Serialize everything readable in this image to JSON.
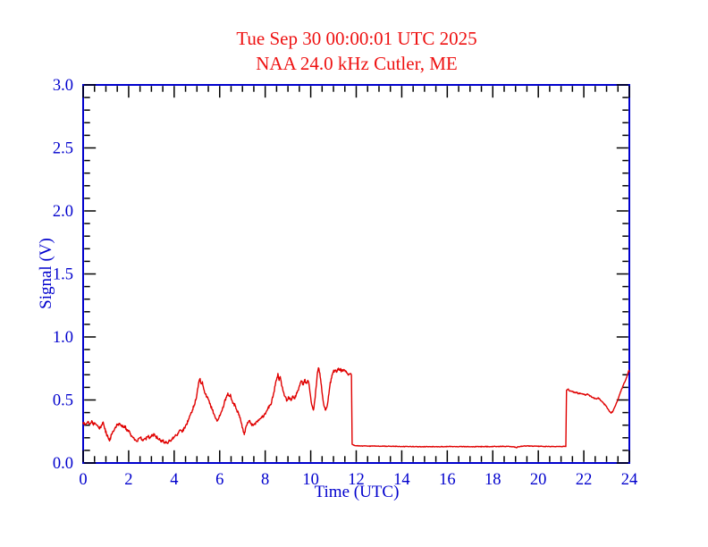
{
  "page": {
    "background": "#ffffff"
  },
  "chart_data": {
    "type": "line",
    "title": "Tue Sep 30 00:00:01 UTC 2025",
    "subtitle": "NAA 24.0 kHz Cutler, ME",
    "xlabel": "Time (UTC)",
    "ylabel": "Signal (V)",
    "xlim": [
      0,
      24
    ],
    "ylim": [
      0.0,
      3.0
    ],
    "x_major_tick_step": 2,
    "x_minor_tick_step": 0.5,
    "y_major_tick_step": 0.5,
    "y_minor_tick_step": 0.1,
    "x_tick_labels": [
      "0",
      "2",
      "4",
      "6",
      "8",
      "10",
      "12",
      "14",
      "16",
      "18",
      "20",
      "22",
      "24"
    ],
    "y_tick_labels": [
      "0.0",
      "0.5",
      "1.0",
      "1.5",
      "2.0",
      "2.5",
      "3.0"
    ],
    "grid": false,
    "legend": "none",
    "colors": {
      "background": "#ffffff",
      "frame": "#0000cd",
      "tick": "#000000",
      "tick_labels": "#0000cd",
      "axis_titles": "#0000cd",
      "title": "#ee1111",
      "trace": "#e00000"
    },
    "noise_texture": [
      {
        "t0": 0.0,
        "t1": 11.79,
        "amp": 0.012
      },
      {
        "t0": 11.79,
        "t1": 21.22,
        "amp": 0.0025
      },
      {
        "t0": 21.22,
        "t1": 24.01,
        "amp": 0.005
      }
    ],
    "series": [
      {
        "name": "NAA 24.0 kHz signal strength",
        "color": "#e00000",
        "points": [
          [
            0,
            0.32
          ],
          [
            0.08,
            0.305
          ],
          [
            0.15,
            0.315
          ],
          [
            0.22,
            0.33
          ],
          [
            0.3,
            0.31
          ],
          [
            0.38,
            0.335
          ],
          [
            0.45,
            0.3
          ],
          [
            0.52,
            0.315
          ],
          [
            0.6,
            0.3
          ],
          [
            0.68,
            0.285
          ],
          [
            0.72,
            0.27
          ],
          [
            0.8,
            0.3
          ],
          [
            0.88,
            0.325
          ],
          [
            0.95,
            0.27
          ],
          [
            1.02,
            0.235
          ],
          [
            1.1,
            0.2
          ],
          [
            1.16,
            0.175
          ],
          [
            1.25,
            0.23
          ],
          [
            1.33,
            0.25
          ],
          [
            1.42,
            0.285
          ],
          [
            1.5,
            0.3
          ],
          [
            1.6,
            0.315
          ],
          [
            1.68,
            0.3
          ],
          [
            1.75,
            0.285
          ],
          [
            1.82,
            0.295
          ],
          [
            1.9,
            0.27
          ],
          [
            1.98,
            0.25
          ],
          [
            2.05,
            0.245
          ],
          [
            2.12,
            0.215
          ],
          [
            2.2,
            0.2
          ],
          [
            2.3,
            0.185
          ],
          [
            2.38,
            0.172
          ],
          [
            2.45,
            0.195
          ],
          [
            2.52,
            0.2
          ],
          [
            2.6,
            0.185
          ],
          [
            2.68,
            0.19
          ],
          [
            2.75,
            0.192
          ],
          [
            2.85,
            0.21
          ],
          [
            2.95,
            0.2
          ],
          [
            3.05,
            0.22
          ],
          [
            3.12,
            0.23
          ],
          [
            3.2,
            0.21
          ],
          [
            3.3,
            0.19
          ],
          [
            3.4,
            0.18
          ],
          [
            3.5,
            0.175
          ],
          [
            3.6,
            0.165
          ],
          [
            3.7,
            0.16
          ],
          [
            3.8,
            0.175
          ],
          [
            3.9,
            0.19
          ],
          [
            4.0,
            0.205
          ],
          [
            4.1,
            0.22
          ],
          [
            4.18,
            0.235
          ],
          [
            4.28,
            0.26
          ],
          [
            4.35,
            0.245
          ],
          [
            4.45,
            0.28
          ],
          [
            4.55,
            0.31
          ],
          [
            4.65,
            0.35
          ],
          [
            4.72,
            0.385
          ],
          [
            4.8,
            0.42
          ],
          [
            4.88,
            0.46
          ],
          [
            4.95,
            0.5
          ],
          [
            5.0,
            0.545
          ],
          [
            5.05,
            0.6
          ],
          [
            5.1,
            0.655
          ],
          [
            5.14,
            0.67
          ],
          [
            5.18,
            0.63
          ],
          [
            5.24,
            0.645
          ],
          [
            5.3,
            0.585
          ],
          [
            5.38,
            0.545
          ],
          [
            5.45,
            0.52
          ],
          [
            5.52,
            0.5
          ],
          [
            5.6,
            0.455
          ],
          [
            5.68,
            0.42
          ],
          [
            5.76,
            0.385
          ],
          [
            5.84,
            0.35
          ],
          [
            5.9,
            0.335
          ],
          [
            5.97,
            0.36
          ],
          [
            6.05,
            0.395
          ],
          [
            6.12,
            0.43
          ],
          [
            6.2,
            0.475
          ],
          [
            6.28,
            0.52
          ],
          [
            6.36,
            0.555
          ],
          [
            6.42,
            0.53
          ],
          [
            6.47,
            0.545
          ],
          [
            6.53,
            0.5
          ],
          [
            6.6,
            0.475
          ],
          [
            6.68,
            0.455
          ],
          [
            6.75,
            0.42
          ],
          [
            6.82,
            0.4
          ],
          [
            6.9,
            0.36
          ],
          [
            6.97,
            0.31
          ],
          [
            7.04,
            0.245
          ],
          [
            7.08,
            0.225
          ],
          [
            7.15,
            0.285
          ],
          [
            7.22,
            0.32
          ],
          [
            7.3,
            0.335
          ],
          [
            7.38,
            0.315
          ],
          [
            7.45,
            0.3
          ],
          [
            7.55,
            0.315
          ],
          [
            7.65,
            0.33
          ],
          [
            7.75,
            0.35
          ],
          [
            7.85,
            0.36
          ],
          [
            7.95,
            0.38
          ],
          [
            8.05,
            0.41
          ],
          [
            8.12,
            0.435
          ],
          [
            8.2,
            0.455
          ],
          [
            8.28,
            0.48
          ],
          [
            8.36,
            0.545
          ],
          [
            8.44,
            0.615
          ],
          [
            8.5,
            0.66
          ],
          [
            8.56,
            0.71
          ],
          [
            8.61,
            0.655
          ],
          [
            8.66,
            0.685
          ],
          [
            8.72,
            0.615
          ],
          [
            8.8,
            0.565
          ],
          [
            8.88,
            0.525
          ],
          [
            8.96,
            0.495
          ],
          [
            9.04,
            0.52
          ],
          [
            9.12,
            0.5
          ],
          [
            9.2,
            0.53
          ],
          [
            9.28,
            0.51
          ],
          [
            9.36,
            0.54
          ],
          [
            9.44,
            0.575
          ],
          [
            9.52,
            0.615
          ],
          [
            9.6,
            0.65
          ],
          [
            9.66,
            0.62
          ],
          [
            9.73,
            0.66
          ],
          [
            9.8,
            0.635
          ],
          [
            9.87,
            0.655
          ],
          [
            9.93,
            0.62
          ],
          [
            10.0,
            0.52
          ],
          [
            10.06,
            0.455
          ],
          [
            10.12,
            0.42
          ],
          [
            10.18,
            0.5
          ],
          [
            10.25,
            0.62
          ],
          [
            10.3,
            0.72
          ],
          [
            10.34,
            0.755
          ],
          [
            10.4,
            0.715
          ],
          [
            10.47,
            0.615
          ],
          [
            10.54,
            0.5
          ],
          [
            10.6,
            0.445
          ],
          [
            10.66,
            0.42
          ],
          [
            10.72,
            0.45
          ],
          [
            10.78,
            0.53
          ],
          [
            10.84,
            0.61
          ],
          [
            10.9,
            0.67
          ],
          [
            10.97,
            0.715
          ],
          [
            11.05,
            0.735
          ],
          [
            11.12,
            0.725
          ],
          [
            11.2,
            0.74
          ],
          [
            11.28,
            0.745
          ],
          [
            11.36,
            0.73
          ],
          [
            11.44,
            0.735
          ],
          [
            11.52,
            0.725
          ],
          [
            11.6,
            0.715
          ],
          [
            11.68,
            0.705
          ],
          [
            11.75,
            0.71
          ],
          [
            11.79,
            0.695
          ],
          [
            11.82,
            0.148
          ],
          [
            11.9,
            0.14
          ],
          [
            12.0,
            0.137
          ],
          [
            12.2,
            0.135
          ],
          [
            12.5,
            0.134
          ],
          [
            12.8,
            0.134
          ],
          [
            13.1,
            0.133
          ],
          [
            13.4,
            0.133
          ],
          [
            13.7,
            0.132
          ],
          [
            14.0,
            0.131
          ],
          [
            14.3,
            0.13
          ],
          [
            14.6,
            0.13
          ],
          [
            14.9,
            0.129
          ],
          [
            15.2,
            0.13
          ],
          [
            15.5,
            0.129
          ],
          [
            15.8,
            0.13
          ],
          [
            16.1,
            0.131
          ],
          [
            16.4,
            0.13
          ],
          [
            16.7,
            0.13
          ],
          [
            17.0,
            0.129
          ],
          [
            17.3,
            0.13
          ],
          [
            17.6,
            0.13
          ],
          [
            17.9,
            0.13
          ],
          [
            18.2,
            0.131
          ],
          [
            18.5,
            0.132
          ],
          [
            18.8,
            0.13
          ],
          [
            18.98,
            0.127
          ],
          [
            19.04,
            0.121
          ],
          [
            19.1,
            0.129
          ],
          [
            19.3,
            0.133
          ],
          [
            19.5,
            0.136
          ],
          [
            19.7,
            0.134
          ],
          [
            19.9,
            0.133
          ],
          [
            20.1,
            0.132
          ],
          [
            20.4,
            0.131
          ],
          [
            20.7,
            0.13
          ],
          [
            21.0,
            0.13
          ],
          [
            21.15,
            0.131
          ],
          [
            21.21,
            0.13
          ],
          [
            21.24,
            0.575
          ],
          [
            21.3,
            0.585
          ],
          [
            21.38,
            0.572
          ],
          [
            21.48,
            0.568
          ],
          [
            21.58,
            0.562
          ],
          [
            21.68,
            0.557
          ],
          [
            21.78,
            0.552
          ],
          [
            21.88,
            0.549
          ],
          [
            21.98,
            0.545
          ],
          [
            22.08,
            0.541
          ],
          [
            22.18,
            0.545
          ],
          [
            22.28,
            0.532
          ],
          [
            22.38,
            0.52
          ],
          [
            22.48,
            0.515
          ],
          [
            22.56,
            0.508
          ],
          [
            22.64,
            0.517
          ],
          [
            22.72,
            0.5
          ],
          [
            22.8,
            0.487
          ],
          [
            22.88,
            0.472
          ],
          [
            22.96,
            0.455
          ],
          [
            23.04,
            0.432
          ],
          [
            23.12,
            0.41
          ],
          [
            23.2,
            0.395
          ],
          [
            23.27,
            0.41
          ],
          [
            23.35,
            0.44
          ],
          [
            23.43,
            0.475
          ],
          [
            23.51,
            0.51
          ],
          [
            23.59,
            0.55
          ],
          [
            23.67,
            0.59
          ],
          [
            23.75,
            0.625
          ],
          [
            23.83,
            0.655
          ],
          [
            23.9,
            0.69
          ],
          [
            23.95,
            0.72
          ],
          [
            23.98,
            0.735
          ],
          [
            24.0,
            0.725
          ]
        ]
      }
    ]
  }
}
